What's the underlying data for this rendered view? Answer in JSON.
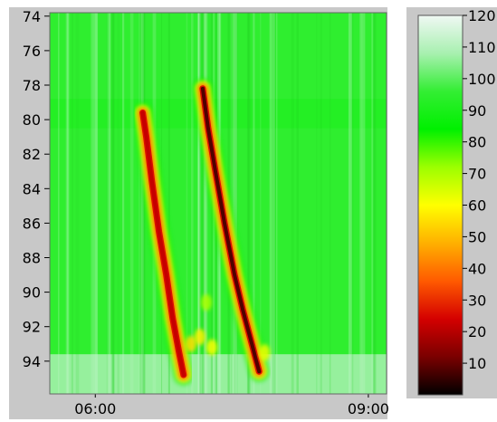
{
  "chart_data": {
    "type": "heatmap",
    "x_tick_labels": [
      "06:00",
      "09:00"
    ],
    "y_tick_labels": [
      "74",
      "76",
      "78",
      "80",
      "82",
      "84",
      "86",
      "88",
      "90",
      "92",
      "94"
    ],
    "y_ticks": [
      74,
      76,
      78,
      80,
      82,
      84,
      86,
      88,
      90,
      92,
      94
    ],
    "ylim": [
      73.8,
      95.9
    ],
    "y_inverted": true,
    "x_range_hours": [
      5.5,
      9.2
    ],
    "colorbar": {
      "ticks": [
        10,
        20,
        30,
        40,
        50,
        60,
        70,
        80,
        90,
        100,
        110,
        120
      ],
      "tick_labels": [
        "10",
        "20",
        "30",
        "40",
        "50",
        "60",
        "70",
        "80",
        "90",
        "100",
        "110",
        "120"
      ],
      "range": [
        0,
        120
      ],
      "colormap": [
        "#000000",
        "#7a0000",
        "#d40000",
        "#ff5a00",
        "#ffb000",
        "#ffff00",
        "#9cff00",
        "#00f000",
        "#33ee33",
        "#a8f0b0",
        "#f0f8f4"
      ]
    },
    "background_value": 95,
    "bands": [
      {
        "y_from": 78.8,
        "y_to": 80.5,
        "value": 92
      },
      {
        "y_from": 93.6,
        "y_to": 95.9,
        "value": 108
      }
    ],
    "streaks": [
      {
        "points": [
          [
            6.52,
            79.6
          ],
          [
            6.56,
            81.0
          ],
          [
            6.62,
            83.5
          ],
          [
            6.7,
            86.5
          ],
          [
            6.78,
            89.0
          ],
          [
            6.85,
            91.5
          ],
          [
            6.92,
            93.5
          ],
          [
            6.97,
            94.8
          ]
        ],
        "min_value": 22
      },
      {
        "points": [
          [
            7.18,
            78.2
          ],
          [
            7.24,
            80.5
          ],
          [
            7.32,
            83.0
          ],
          [
            7.42,
            86.0
          ],
          [
            7.53,
            89.0
          ],
          [
            7.62,
            91.0
          ],
          [
            7.72,
            93.0
          ],
          [
            7.8,
            94.6
          ]
        ],
        "min_value": 8
      }
    ],
    "tail_blobs": [
      {
        "x": 7.05,
        "y": 93.0,
        "value": 55
      },
      {
        "x": 7.15,
        "y": 92.6,
        "value": 58
      },
      {
        "x": 7.22,
        "y": 90.6,
        "value": 70
      },
      {
        "x": 7.28,
        "y": 93.2,
        "value": 60
      },
      {
        "x": 7.86,
        "y": 93.5,
        "value": 62
      }
    ]
  }
}
